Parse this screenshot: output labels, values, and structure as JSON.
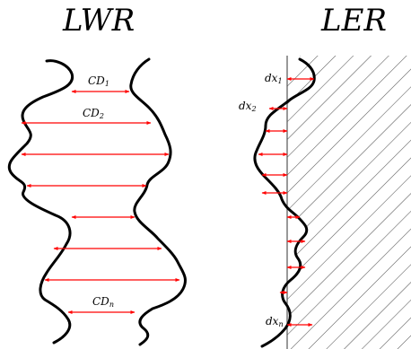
{
  "panels": {
    "lwr": {
      "title": "LWR",
      "labels": [
        {
          "base": "CD",
          "sub": "1"
        },
        {
          "base": "CD",
          "sub": "2"
        },
        {
          "base": "CD",
          "sub": "n"
        }
      ]
    },
    "ler": {
      "title": "LER",
      "labels": [
        {
          "base": "dx",
          "sub": "1"
        },
        {
          "base": "dx",
          "sub": "2"
        },
        {
          "base": "dx",
          "sub": "n"
        }
      ]
    }
  },
  "colors": {
    "edge": "#000000",
    "arrow": "#ff0000",
    "hatch": "#555555"
  }
}
